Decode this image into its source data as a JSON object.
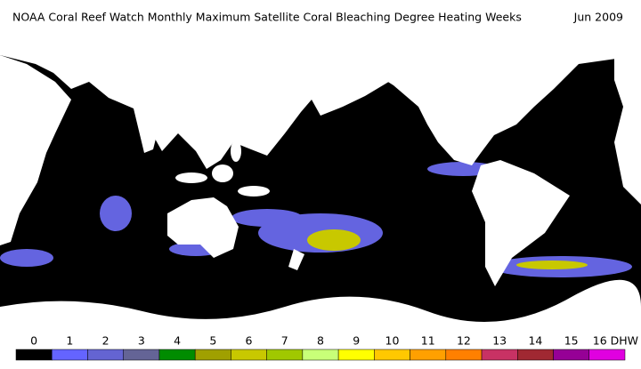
{
  "header": {
    "title": "NOAA Coral Reef Watch Monthly Maximum Satellite Coral Bleaching Degree Heating Weeks",
    "date": "Jun 2009"
  },
  "colorbar": {
    "labels": [
      "0",
      "1",
      "2",
      "3",
      "4",
      "5",
      "6",
      "7",
      "8",
      "9",
      "10",
      "11",
      "12",
      "13",
      "14",
      "15",
      "16 DHW"
    ],
    "colors": [
      "#000000",
      "#6464ff",
      "#6464d2",
      "#646496",
      "#008c00",
      "#a0a000",
      "#c8c800",
      "#a0c800",
      "#c8ff78",
      "#ffff00",
      "#ffc800",
      "#ffa000",
      "#ff8000",
      "#c83264",
      "#a02832",
      "#960096",
      "#e000e0"
    ]
  }
}
